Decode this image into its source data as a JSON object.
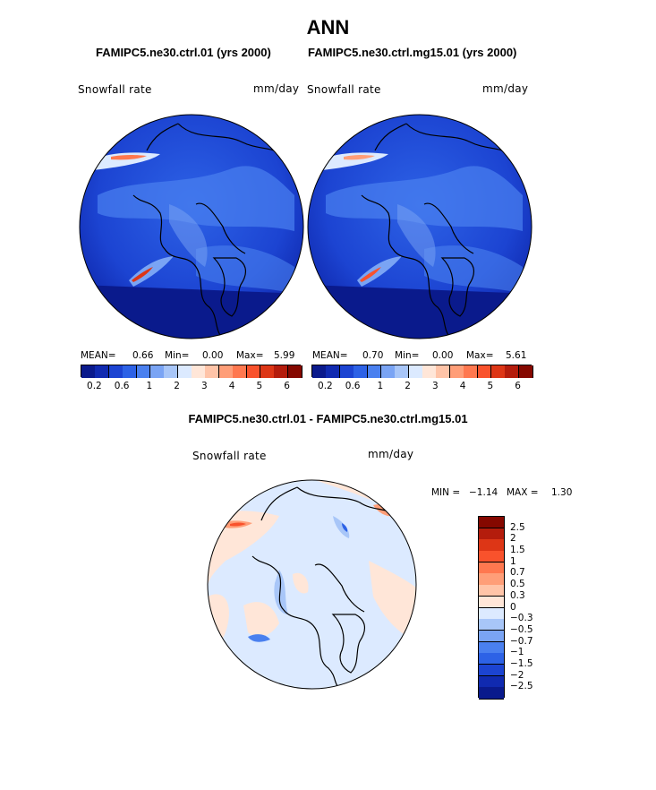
{
  "header": {
    "title": "ANN"
  },
  "panels": [
    {
      "case_title": "FAMIPC5.ne30.ctrl.01 (yrs 2000)",
      "variable": "Snowfall rate",
      "units": "mm/day",
      "stats": {
        "mean_label": "MEAN=",
        "mean": "0.66",
        "min_label": "Min=",
        "min": "0.00",
        "max_label": "Max=",
        "max": "5.99"
      },
      "colorbar_ticks": [
        "0.2",
        "0.6",
        "1",
        "2",
        "3",
        "4",
        "5",
        "6"
      ]
    },
    {
      "case_title": "FAMIPC5.ne30.ctrl.mg15.01 (yrs 2000)",
      "variable": "Snowfall rate",
      "units": "mm/day",
      "stats": {
        "mean_label": "MEAN=",
        "mean": "0.70",
        "min_label": "Min=",
        "min": "0.00",
        "max_label": "Max=",
        "max": "5.61"
      },
      "colorbar_ticks": [
        "0.2",
        "0.6",
        "1",
        "2",
        "3",
        "4",
        "5",
        "6"
      ]
    }
  ],
  "diff": {
    "title": "FAMIPC5.ne30.ctrl.01 - FAMIPC5.ne30.ctrl.mg15.01",
    "variable": "Snowfall rate",
    "units": "mm/day",
    "min_label": "MIN =",
    "min": "−1.14",
    "max_label": "MAX =",
    "max": "1.30",
    "colorbar_ticks": [
      "2.5",
      "2",
      "1.5",
      "1",
      "0.7",
      "0.5",
      "0.3",
      "0",
      "−0.3",
      "−0.5",
      "−0.7",
      "−1",
      "−1.5",
      "−2",
      "−2.5"
    ]
  },
  "colors": {
    "abs_scale": [
      "#0a1a8c",
      "#102ab0",
      "#1c44d2",
      "#2d62e6",
      "#4a80ef",
      "#7aa4f4",
      "#a8c6f8",
      "#dceaff",
      "#ffe6d8",
      "#ffc4a8",
      "#ff9e78",
      "#ff784f",
      "#f9522c",
      "#dd3616",
      "#b41c0c",
      "#850800"
    ],
    "diff_scale": [
      "#850800",
      "#b41c0c",
      "#dd3616",
      "#f9522c",
      "#ff784f",
      "#ff9e78",
      "#ffc4a8",
      "#ffe6d8",
      "#dceaff",
      "#a8c6f8",
      "#7aa4f4",
      "#4a80ef",
      "#2d62e6",
      "#1c44d2",
      "#102ab0",
      "#0a1a8c"
    ]
  },
  "chart_data": [
    {
      "type": "heatmap",
      "title": "FAMIPC5.ne30.ctrl.01 (yrs 2000)",
      "variable": "Snowfall rate",
      "units": "mm/day",
      "projection": "north polar stereographic",
      "mean": 0.66,
      "min": 0.0,
      "max": 5.99,
      "contour_levels": [
        0.1,
        0.2,
        0.4,
        0.6,
        0.8,
        1,
        1.5,
        2,
        2.5,
        3,
        3.5,
        4,
        4.5,
        5,
        5.5,
        6
      ]
    },
    {
      "type": "heatmap",
      "title": "FAMIPC5.ne30.ctrl.mg15.01 (yrs 2000)",
      "variable": "Snowfall rate",
      "units": "mm/day",
      "projection": "north polar stereographic",
      "mean": 0.7,
      "min": 0.0,
      "max": 5.61,
      "contour_levels": [
        0.1,
        0.2,
        0.4,
        0.6,
        0.8,
        1,
        1.5,
        2,
        2.5,
        3,
        3.5,
        4,
        4.5,
        5,
        5.5,
        6
      ]
    },
    {
      "type": "heatmap",
      "title": "FAMIPC5.ne30.ctrl.01 - FAMIPC5.ne30.ctrl.mg15.01",
      "variable": "Snowfall rate",
      "units": "mm/day",
      "projection": "north polar stereographic",
      "min": -1.14,
      "max": 1.3,
      "contour_levels": [
        -2.5,
        -2,
        -1.5,
        -1,
        -0.7,
        -0.5,
        -0.3,
        0,
        0.3,
        0.5,
        0.7,
        1,
        1.5,
        2,
        2.5
      ]
    }
  ]
}
